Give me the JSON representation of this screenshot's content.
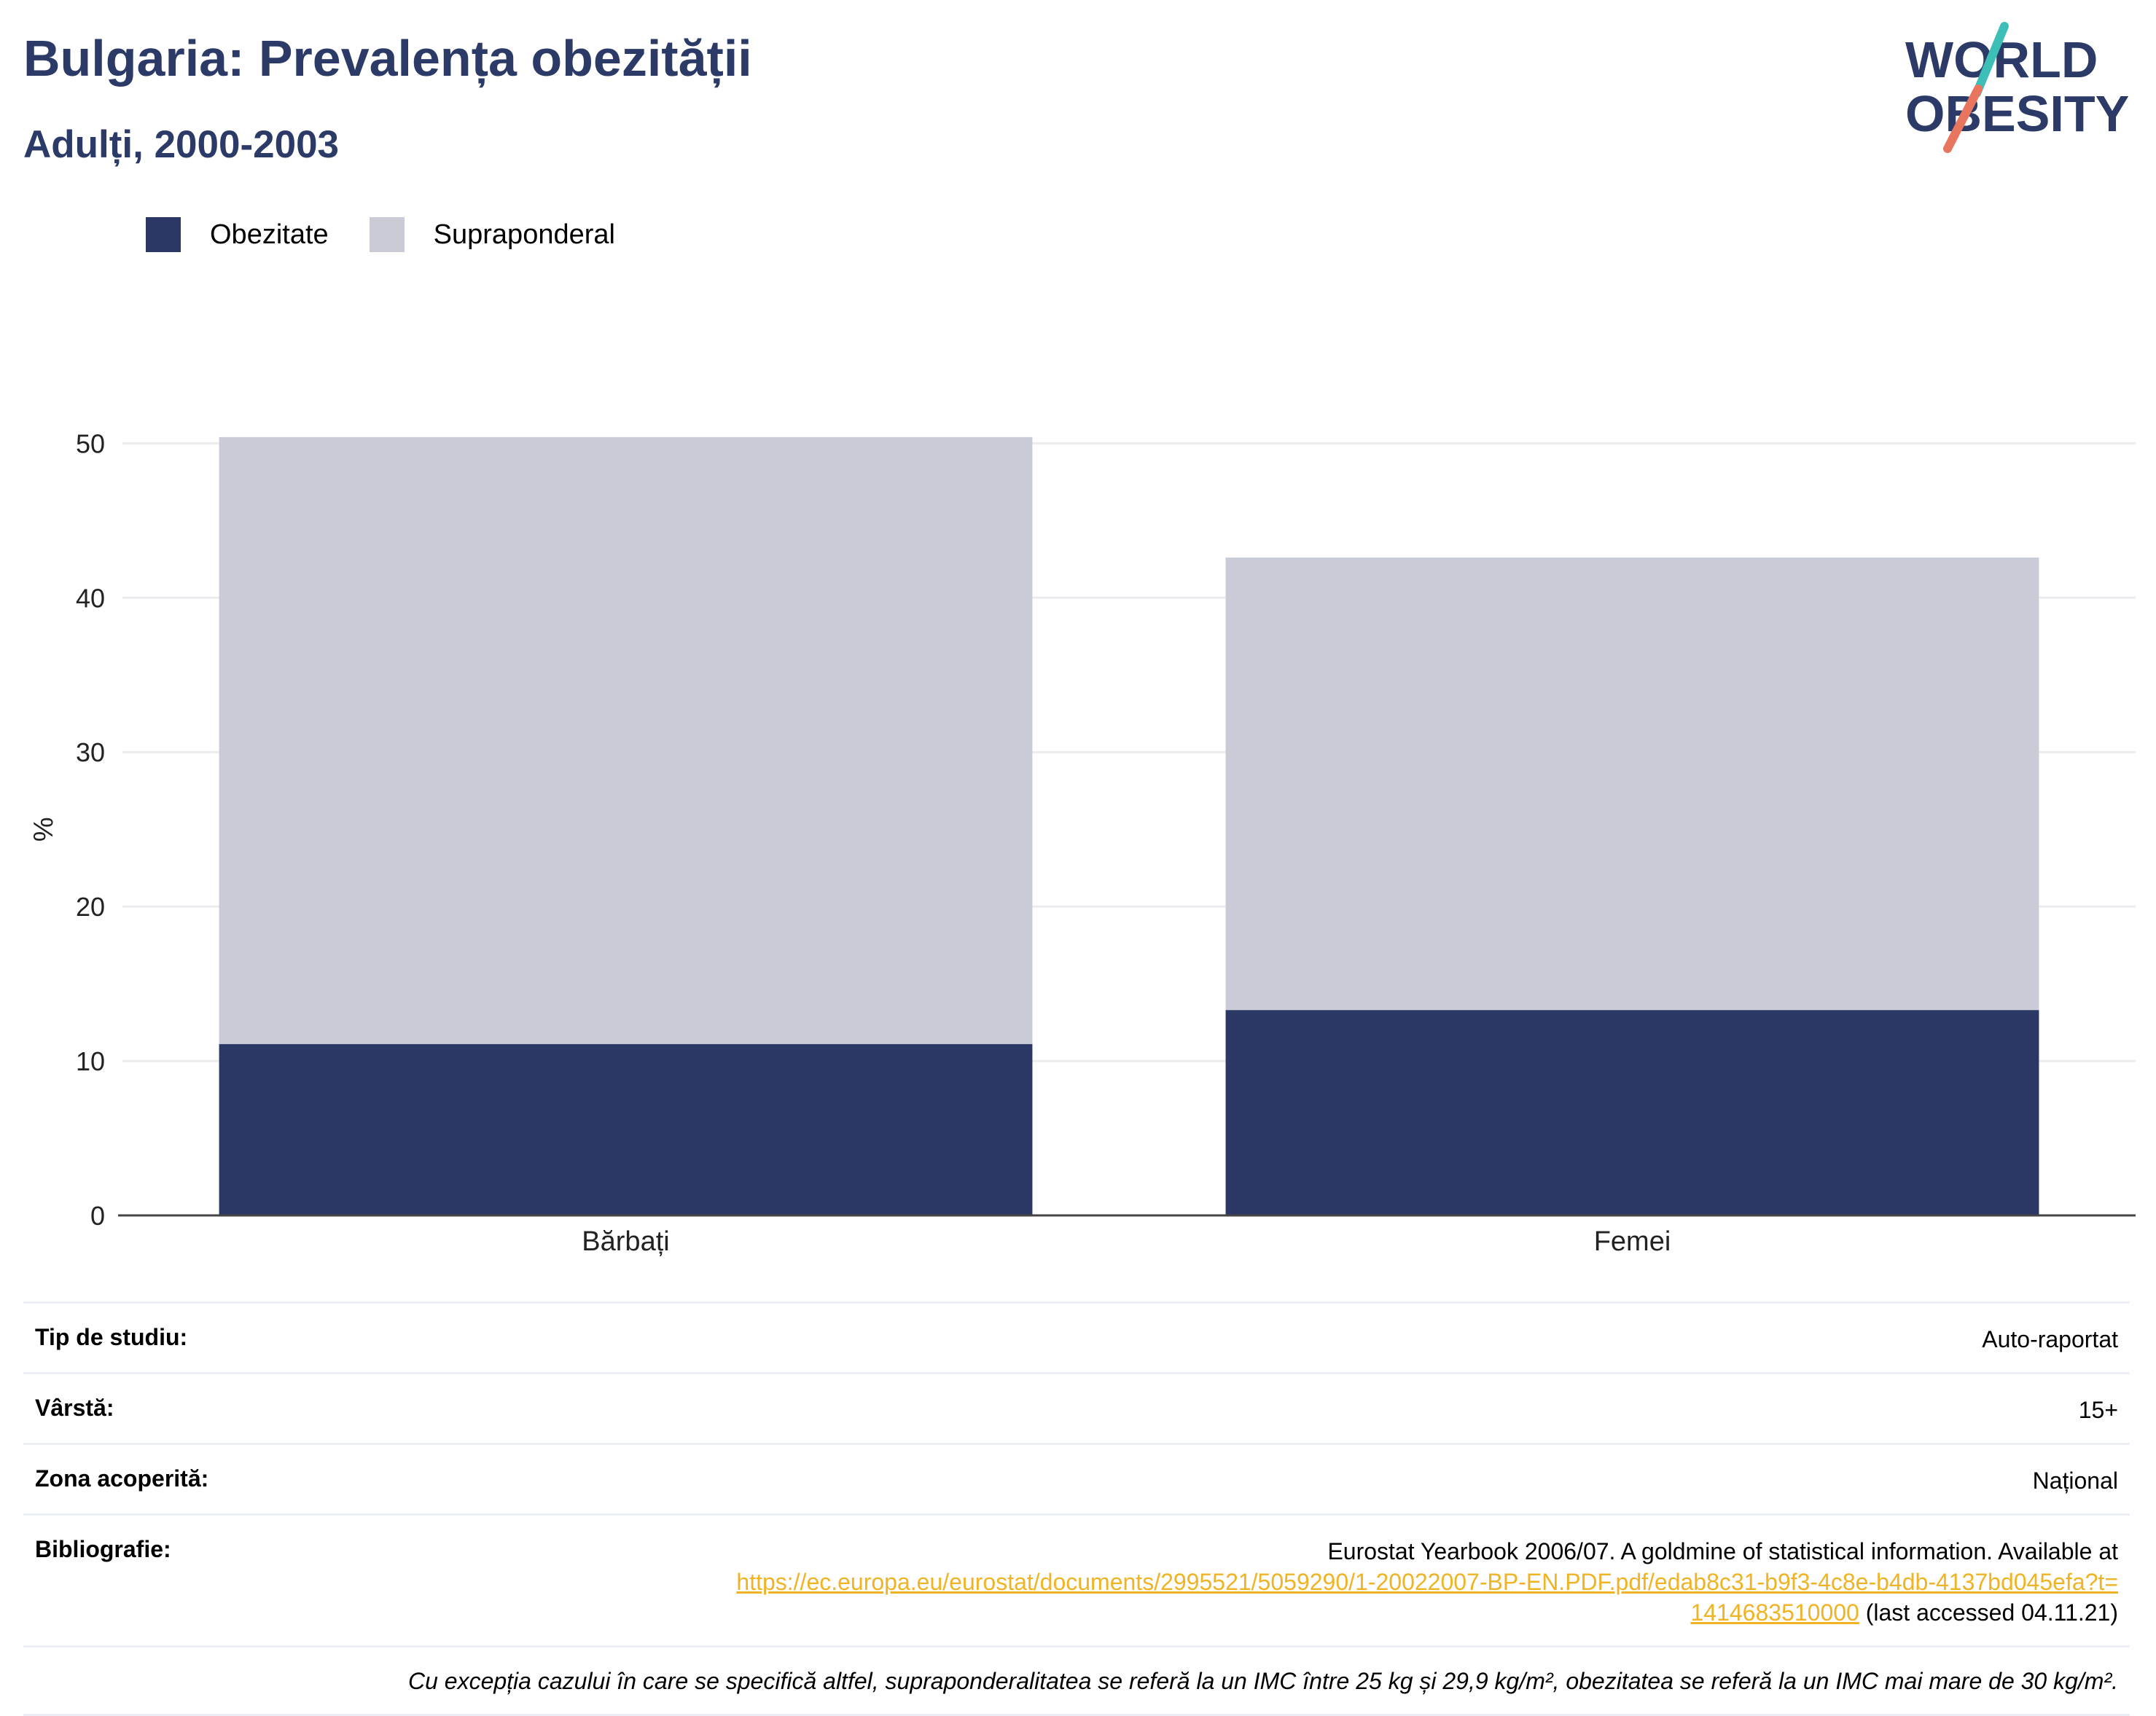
{
  "header": {
    "title": "Bulgaria: Prevalența obezității",
    "subtitle": "Adulți, 2000-2003"
  },
  "logo": {
    "line1": "WORLD",
    "line2": "OBESITY"
  },
  "colors": {
    "obesity": "#2b3765",
    "overweight": "#c9ccd7",
    "title": "#2b3a67",
    "link": "#f0b323",
    "logo_teal": "#3dbfb8",
    "logo_coral": "#e8765f"
  },
  "chart_data": {
    "type": "bar",
    "stacked": true,
    "categories": [
      "Bărbați",
      "Femei"
    ],
    "series": [
      {
        "name": "Obezitate",
        "values": [
          11.1,
          13.3
        ]
      },
      {
        "name": "Supraponderal",
        "values": [
          39.3,
          29.3
        ]
      }
    ],
    "ylabel": "%",
    "ylim": [
      0,
      52
    ],
    "yticks": [
      0,
      10,
      20,
      30,
      40,
      50
    ],
    "grid": true,
    "legend": "top-left"
  },
  "info": {
    "rows": [
      {
        "label": "Tip de studiu:",
        "value": "Auto-raportat"
      },
      {
        "label": "Vârstă:",
        "value": "15+"
      },
      {
        "label": "Zona acoperită:",
        "value": "Național"
      }
    ],
    "bibliography": {
      "label": "Bibliografie:",
      "text_before": "Eurostat Yearbook 2006/07. A goldmine of statistical information. Available at",
      "link": "https://ec.europa.eu/eurostat/documents/2995521/5059290/1-20022007-BP-EN.PDF.pdf/edab8c31-b9f3-4c8e-b4db-4137bd045efa?t=1414683510000",
      "text_after": "(last accessed 04.11.21)"
    },
    "note": "Cu excepția cazului în care se specifică altfel, supraponderalitatea se referă la un IMC între 25 kg și 29,9 kg/m², obezitatea se referă la un IMC mai mare de 30 kg/m²."
  }
}
